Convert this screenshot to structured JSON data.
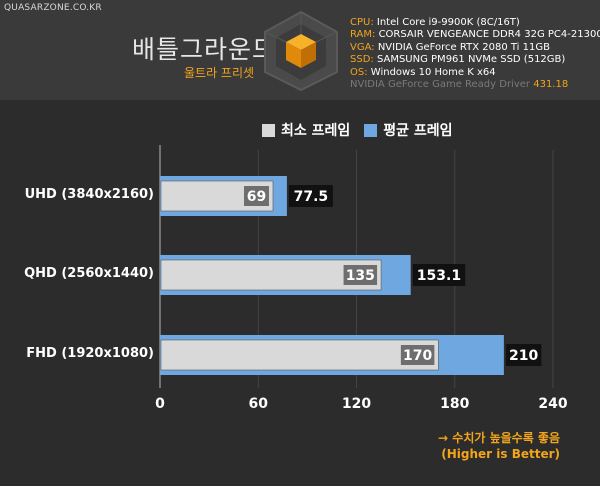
{
  "header": {
    "site": "QUASARZONE.CO.KR",
    "title": "배틀그라운드",
    "subtitle": "울트라 프리셋",
    "specs": [
      {
        "label": "CPU:",
        "value": "Intel Core i9-9900K (8C/16T)"
      },
      {
        "label": "RAM:",
        "value": "CORSAIR VENGEANCE DDR4 32G PC4-21300"
      },
      {
        "label": "VGA:",
        "value": "NVIDIA GeForce RTX 2080 Ti 11GB"
      },
      {
        "label": "SSD:",
        "value": "SAMSUNG PM961 NVMe SSD (512GB)"
      },
      {
        "label": "OS:",
        "value": "Windows 10 Home K x64"
      }
    ],
    "driver": {
      "text": "NVIDIA GeForce Game Ready Driver",
      "version": "431.18"
    }
  },
  "note": {
    "line1": "→ 수치가 높을수록 좋음",
    "line2": "(Higher is Better)"
  },
  "chart_data": {
    "type": "bar",
    "orientation": "horizontal",
    "categories": [
      "UHD (3840x2160)",
      "QHD (2560x1440)",
      "FHD (1920x1080)"
    ],
    "series": [
      {
        "name": "최소 프레임",
        "values": [
          69,
          135,
          170
        ],
        "color": "#d9d9d9"
      },
      {
        "name": "평균 프레임",
        "values": [
          77.5,
          153.1,
          210
        ],
        "color": "#6fa8e0"
      }
    ],
    "value_labels": {
      "min": [
        "69",
        "135",
        "170"
      ],
      "avg": [
        "77.5",
        "153.1",
        "210"
      ]
    },
    "xlim": [
      0,
      240
    ],
    "xticks": [
      "0",
      "60",
      "120",
      "180",
      "240"
    ],
    "grid": "vertical",
    "legend_position": "top"
  }
}
